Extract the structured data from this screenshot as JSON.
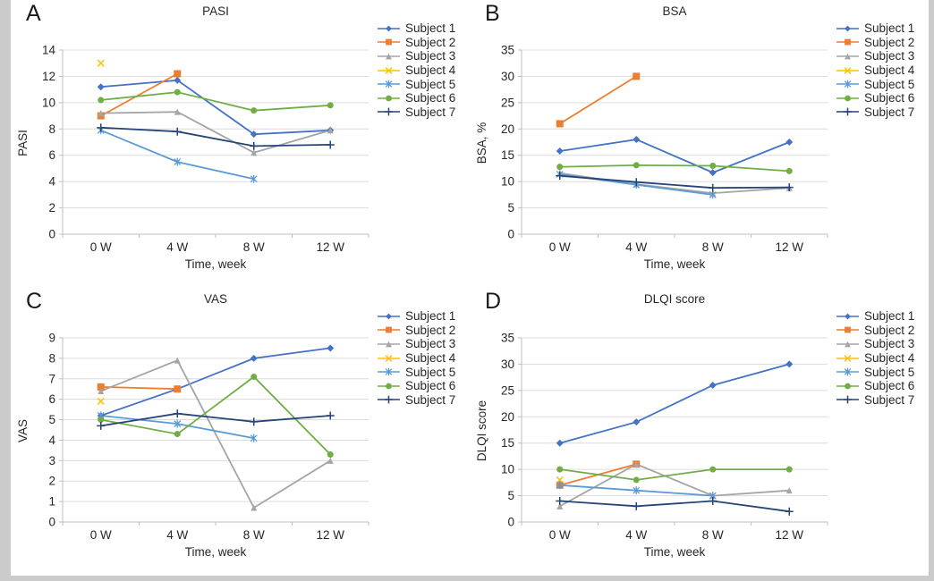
{
  "style": {
    "series_colors": [
      "#4472C4",
      "#ED7D31",
      "#A5A5A5",
      "#FFC000",
      "#5B9BD5",
      "#70AD47",
      "#264478"
    ],
    "series_markers": [
      "diamond",
      "square",
      "triangle",
      "x",
      "star",
      "circle",
      "plus"
    ],
    "gridline_color": "#dcdcdc",
    "axis_color": "#bfbfbf",
    "text_color": "#262626"
  },
  "chart_data": [
    {
      "type": "line",
      "panel": "A",
      "title": "PASI",
      "xlabel": "Time, week",
      "ylabel": "PASI",
      "categories": [
        "0 W",
        "4 W",
        "8 W",
        "12 W"
      ],
      "ylim": [
        0,
        14
      ],
      "ytick": 2,
      "grid": true,
      "legend_position": "right",
      "series": [
        {
          "name": "Subject 1",
          "values": [
            11.2,
            11.7,
            7.6,
            7.9
          ]
        },
        {
          "name": "Subject 2",
          "values": [
            9,
            12.2,
            null,
            null
          ]
        },
        {
          "name": "Subject 3",
          "values": [
            9.2,
            9.3,
            6.2,
            7.9
          ]
        },
        {
          "name": "Subject 4",
          "values": [
            13,
            null,
            null,
            null
          ]
        },
        {
          "name": "Subject 5",
          "values": [
            7.9,
            5.5,
            4.2,
            null
          ]
        },
        {
          "name": "Subject 6",
          "values": [
            10.2,
            10.8,
            9.4,
            9.8
          ]
        },
        {
          "name": "Subject 7",
          "values": [
            8.1,
            7.8,
            6.7,
            6.8
          ]
        }
      ]
    },
    {
      "type": "line",
      "panel": "B",
      "title": "BSA",
      "xlabel": "Time, week",
      "ylabel": "BSA, %",
      "categories": [
        "0 W",
        "4 W",
        "8 W",
        "12 W"
      ],
      "ylim": [
        0,
        35
      ],
      "ytick": 5,
      "grid": true,
      "legend_position": "right",
      "series": [
        {
          "name": "Subject 1",
          "values": [
            15.8,
            18,
            11.7,
            17.5
          ]
        },
        {
          "name": "Subject 2",
          "values": [
            21,
            30,
            null,
            null
          ]
        },
        {
          "name": "Subject 3",
          "values": [
            11.6,
            9.5,
            7.8,
            8.8
          ]
        },
        {
          "name": "Subject 4",
          "values": [
            null,
            null,
            null,
            null
          ]
        },
        {
          "name": "Subject 5",
          "values": [
            11.4,
            9.4,
            7.5,
            null
          ]
        },
        {
          "name": "Subject 6",
          "values": [
            12.8,
            13.1,
            13,
            12
          ]
        },
        {
          "name": "Subject 7",
          "values": [
            11.1,
            9.9,
            8.8,
            8.9
          ]
        }
      ]
    },
    {
      "type": "line",
      "panel": "C",
      "title": "VAS",
      "xlabel": "Time, week",
      "ylabel": "VAS",
      "categories": [
        "0 W",
        "4 W",
        "8 W",
        "12 W"
      ],
      "ylim": [
        0,
        9
      ],
      "ytick": 1,
      "grid": true,
      "legend_position": "right",
      "series": [
        {
          "name": "Subject 1",
          "values": [
            5.2,
            6.5,
            8,
            8.5
          ]
        },
        {
          "name": "Subject 2",
          "values": [
            6.6,
            6.5,
            null,
            null
          ]
        },
        {
          "name": "Subject 3",
          "values": [
            6.4,
            7.9,
            0.7,
            3
          ]
        },
        {
          "name": "Subject 4",
          "values": [
            5.9,
            null,
            null,
            null
          ]
        },
        {
          "name": "Subject 5",
          "values": [
            5.2,
            4.8,
            4.1,
            null
          ]
        },
        {
          "name": "Subject 6",
          "values": [
            5,
            4.3,
            7.1,
            3.3
          ]
        },
        {
          "name": "Subject 7",
          "values": [
            4.7,
            5.3,
            4.9,
            5.2
          ]
        }
      ]
    },
    {
      "type": "line",
      "panel": "D",
      "title": "DLQI score",
      "xlabel": "Time, week",
      "ylabel": "DLQI score",
      "categories": [
        "0 W",
        "4 W",
        "8 W",
        "12 W"
      ],
      "ylim": [
        0,
        35
      ],
      "ytick": 5,
      "grid": true,
      "legend_position": "right",
      "series": [
        {
          "name": "Subject 1",
          "values": [
            15,
            19,
            26,
            30
          ]
        },
        {
          "name": "Subject 2",
          "values": [
            7,
            11,
            null,
            null
          ]
        },
        {
          "name": "Subject 3",
          "values": [
            3,
            11,
            5,
            6
          ]
        },
        {
          "name": "Subject 4",
          "values": [
            8,
            null,
            null,
            null
          ]
        },
        {
          "name": "Subject 5",
          "values": [
            7,
            6,
            5,
            null
          ]
        },
        {
          "name": "Subject 6",
          "values": [
            10,
            8,
            10,
            10
          ]
        },
        {
          "name": "Subject 7",
          "values": [
            4,
            3,
            4,
            2
          ]
        }
      ]
    }
  ]
}
